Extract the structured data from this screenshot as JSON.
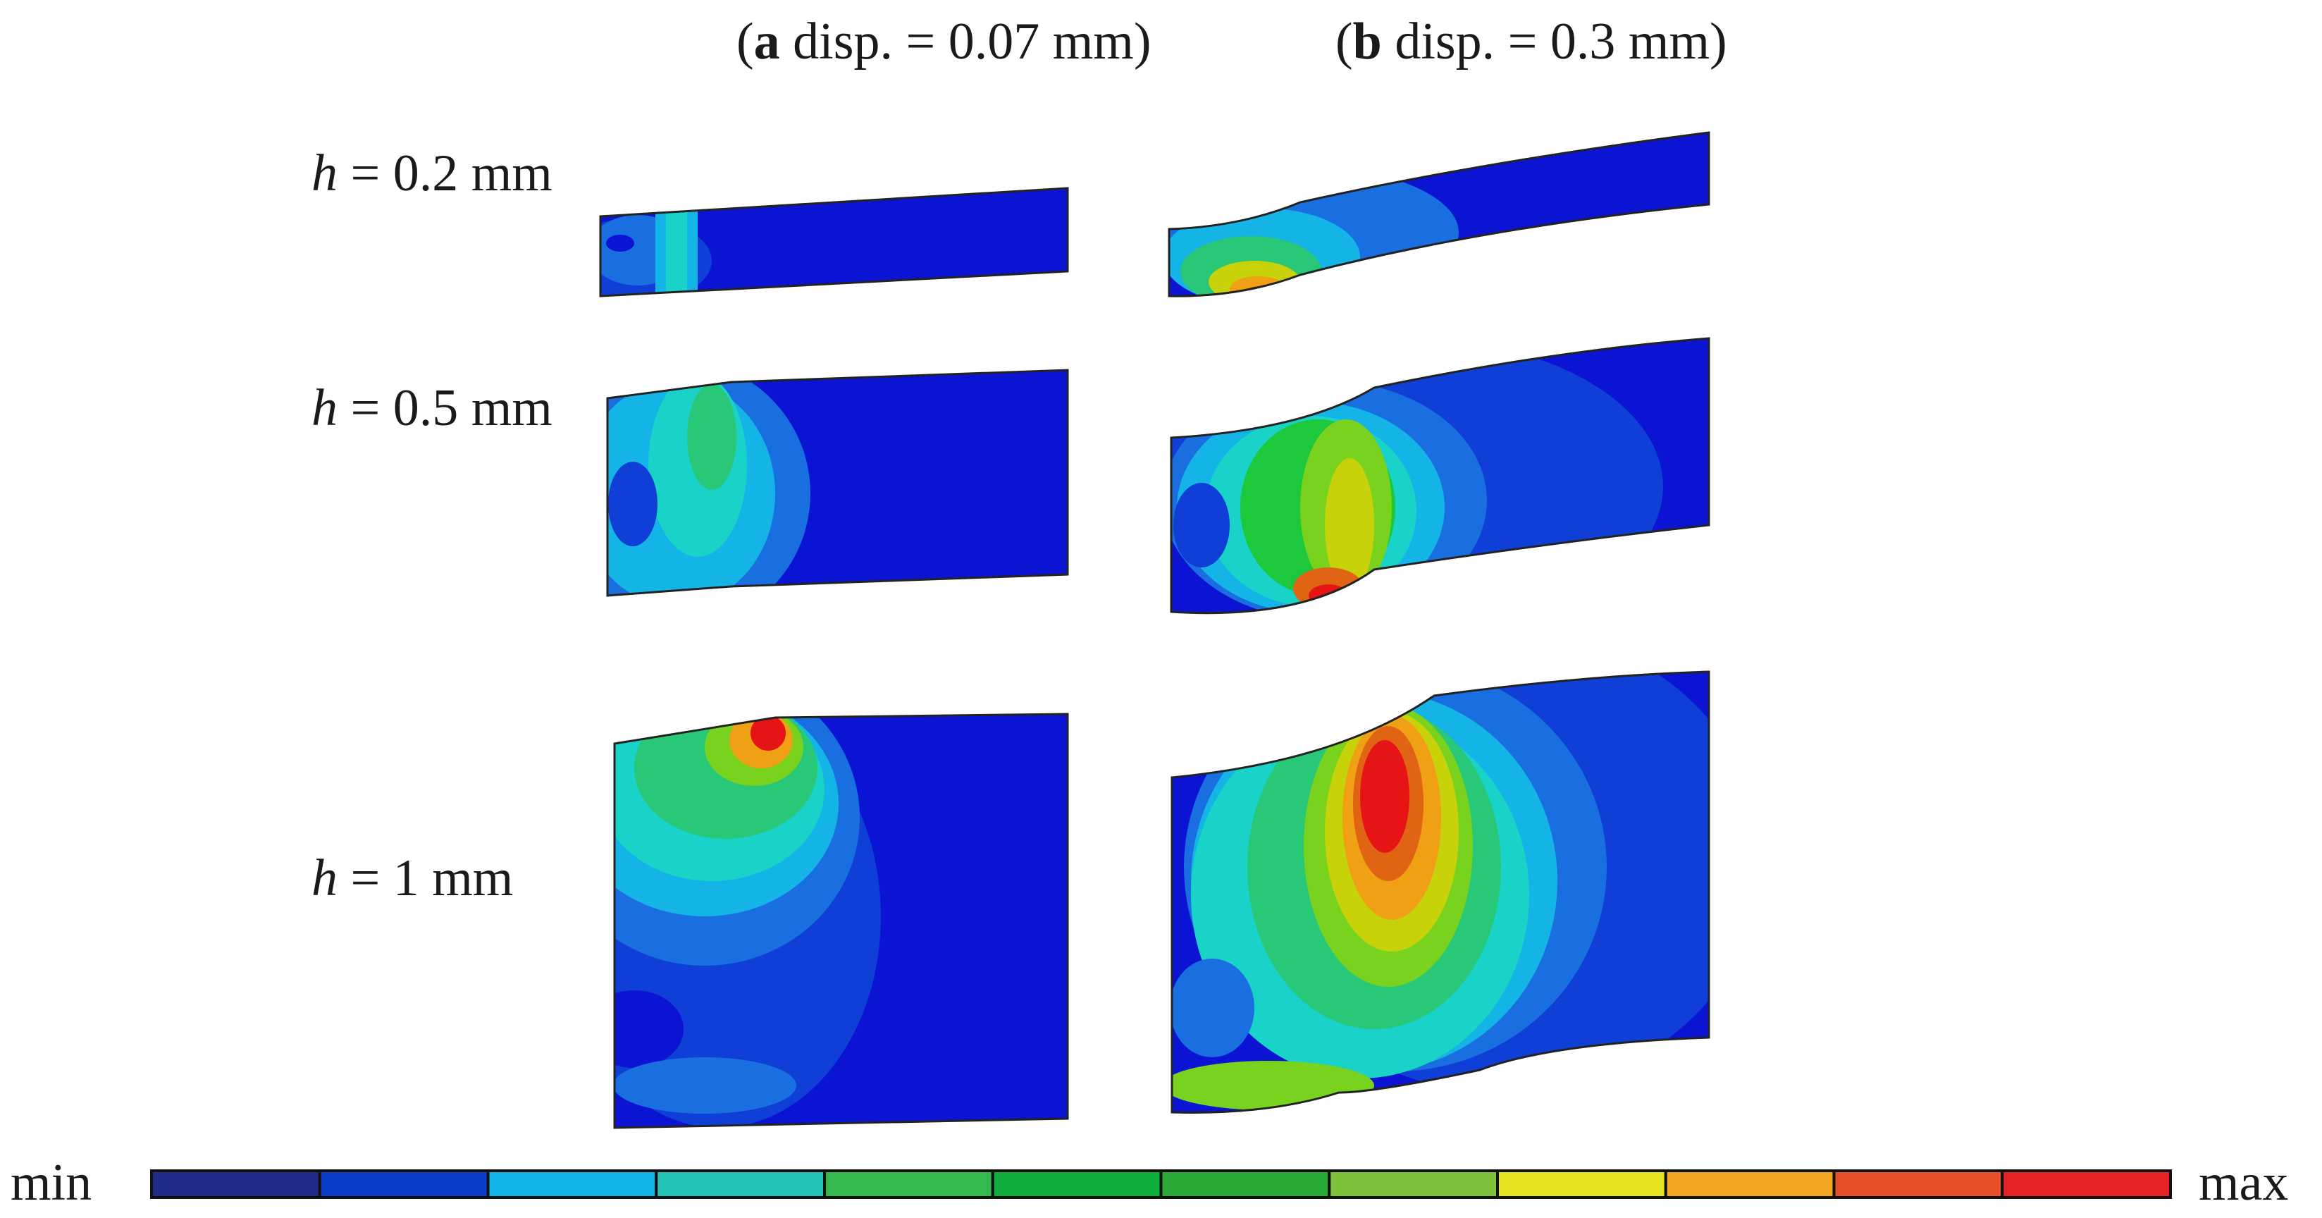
{
  "headers": {
    "a": {
      "tag": "a",
      "text": " disp. = 0.07 mm"
    },
    "b": {
      "tag": "b",
      "text": " disp. = 0.3 mm"
    }
  },
  "rows": [
    {
      "var": "h",
      "text": " = 0.2 mm"
    },
    {
      "var": "h",
      "text": " = 0.5 mm"
    },
    {
      "var": "h",
      "text": " = 1 mm"
    }
  ],
  "colorbar": {
    "min_label": "min",
    "max_label": "max",
    "colors": [
      "#1f2b87",
      "#0d3ec9",
      "#12b3e6",
      "#24c1b7",
      "#35b84d",
      "#0fae3e",
      "#2aaa36",
      "#7ec13a",
      "#e4e422",
      "#f2a623",
      "#e8502a",
      "#e62428"
    ]
  },
  "palette": {
    "blue": "#0a14d2",
    "blue2": "#0f3fd6",
    "blue3": "#1a6fe0",
    "cyan": "#14b4e6",
    "teal": "#19d2c8",
    "green": "#28c878",
    "green2": "#1ec83c",
    "lime": "#78d21e",
    "yellow": "#c8d20a",
    "orange": "#f0a014",
    "orange2": "#e06414",
    "red": "#e61414"
  }
}
